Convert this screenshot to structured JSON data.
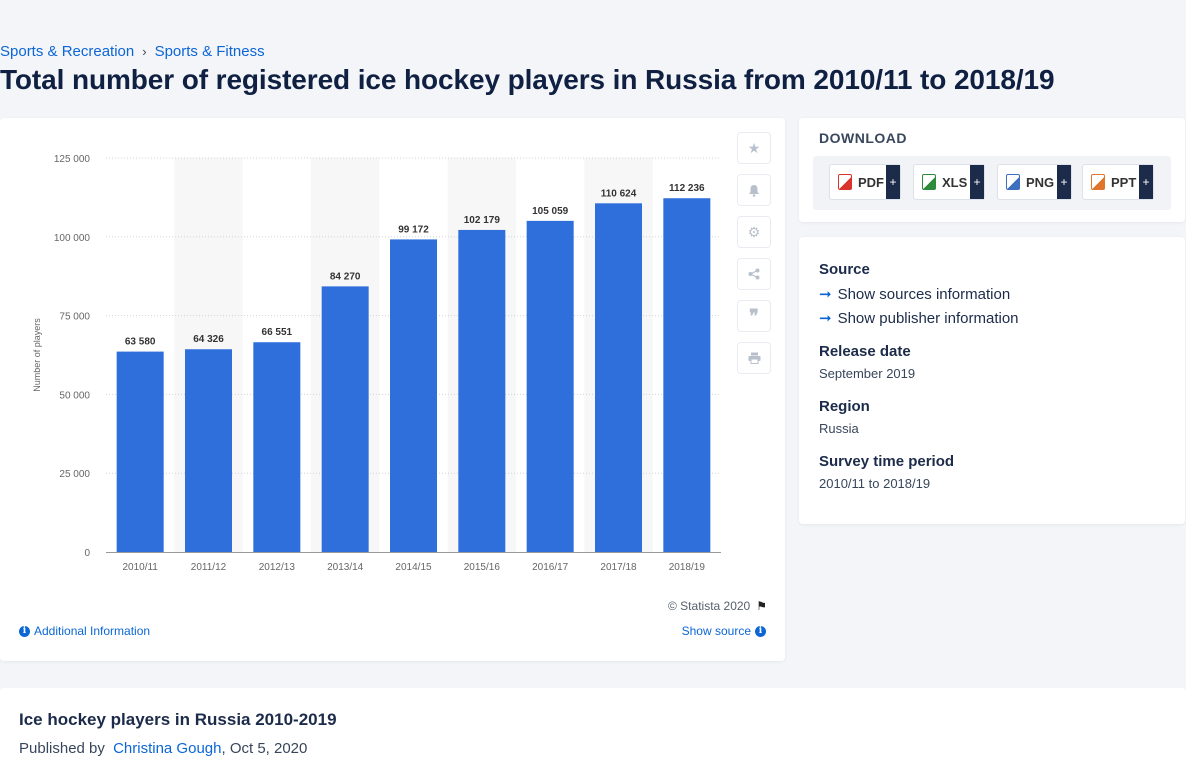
{
  "breadcrumb": {
    "items": [
      "Sports & Recreation",
      "Sports & Fitness"
    ],
    "separator": "›"
  },
  "page_title": "Total number of registered ice hockey players in Russia from 2010/11 to 2018/19",
  "chart_data": {
    "type": "bar",
    "categories": [
      "2010/11",
      "2011/12",
      "2012/13",
      "2013/14",
      "2014/15",
      "2015/16",
      "2016/17",
      "2017/18",
      "2018/19"
    ],
    "values": [
      63580,
      64326,
      66551,
      84270,
      99172,
      102179,
      105059,
      110624,
      112236
    ],
    "value_labels": [
      "63 580",
      "64 326",
      "66 551",
      "84 270",
      "99 172",
      "102 179",
      "105 059",
      "110 624",
      "112 236"
    ],
    "ylabel": "Number of players",
    "ylim": [
      0,
      125000
    ],
    "yticks": [
      0,
      25000,
      50000,
      75000,
      100000,
      125000
    ],
    "ytick_labels": [
      "0",
      "25 000",
      "50 000",
      "75 000",
      "100 000",
      "125 000"
    ],
    "bar_color": "#2f6fdb",
    "grid": true
  },
  "chart_footer": {
    "credit": "© Statista 2020",
    "additional_info": "Additional Information",
    "show_source": "Show source"
  },
  "tools": [
    "star-icon",
    "bell-icon",
    "gear-icon",
    "share-icon",
    "quote-icon",
    "print-icon"
  ],
  "download": {
    "title": "DOWNLOAD",
    "buttons": [
      {
        "label": "PDF",
        "color": "#d9342b"
      },
      {
        "label": "XLS",
        "color": "#2e8b3a"
      },
      {
        "label": "PNG",
        "color": "#3d6fbf"
      },
      {
        "label": "PPT",
        "color": "#e0762b"
      }
    ],
    "plus": "+"
  },
  "meta": {
    "source_label": "Source",
    "show_sources": "Show sources information",
    "show_publisher": "Show publisher information",
    "release_label": "Release date",
    "release_value": "September 2019",
    "region_label": "Region",
    "region_value": "Russia",
    "period_label": "Survey time period",
    "period_value": "2010/11 to 2018/19"
  },
  "article": {
    "title": "Ice hockey players in Russia 2010-2019",
    "published_by": "Published by",
    "author": "Christina Gough",
    "date": ", Oct 5, 2020"
  }
}
